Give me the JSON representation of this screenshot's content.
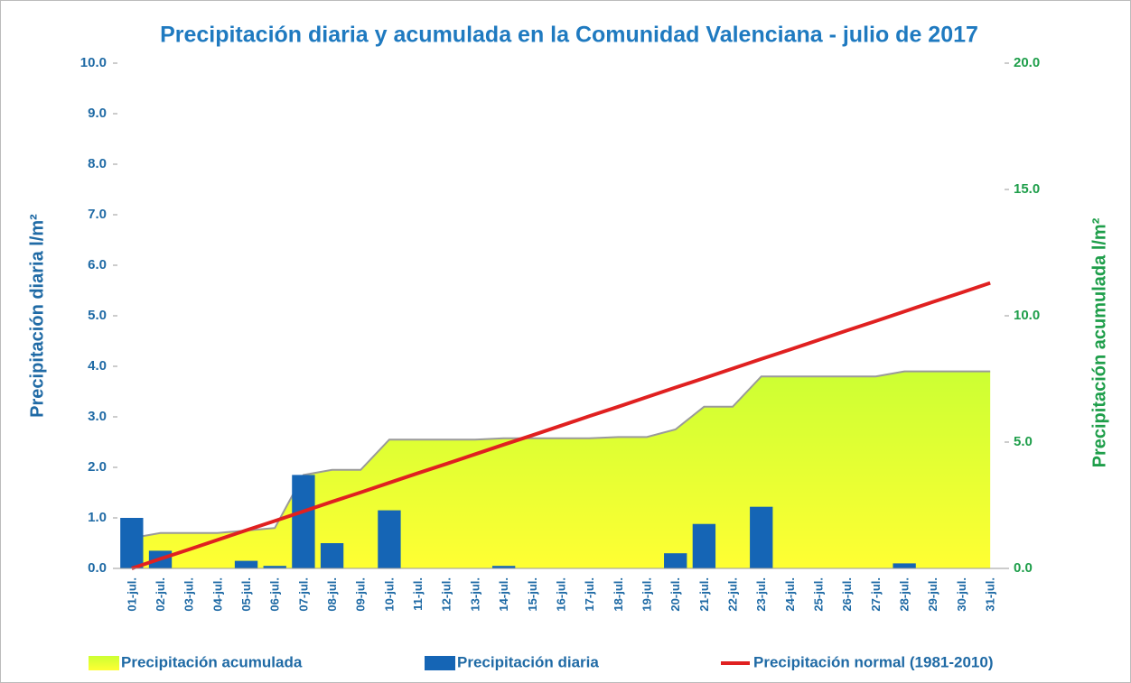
{
  "chart_data": {
    "type": "bar",
    "title": "Precipitación diaria y acumulada en la Comunidad Valenciana - julio de 2017",
    "ylabel": "Precipitación diaria l/m²",
    "y2label": "Precipitación acumulada l/m²",
    "categories": [
      "01-jul.",
      "02-jul.",
      "03-jul.",
      "04-jul.",
      "05-jul.",
      "06-jul.",
      "07-jul.",
      "08-jul.",
      "09-jul.",
      "10-jul.",
      "11-jul.",
      "12-jul.",
      "13-jul.",
      "14-jul.",
      "15-jul.",
      "16-jul.",
      "17-jul.",
      "18-jul.",
      "19-jul.",
      "20-jul.",
      "21-jul.",
      "22-jul.",
      "23-jul.",
      "24-jul.",
      "25-jul.",
      "26-jul.",
      "27-jul.",
      "28-jul.",
      "29-jul.",
      "30-jul.",
      "31-jul."
    ],
    "series": [
      {
        "name": "Precipitación acumulada",
        "type": "area",
        "axis": "y2",
        "color": "#ccff33",
        "values": [
          1.2,
          1.4,
          1.4,
          1.4,
          1.5,
          1.6,
          3.7,
          3.9,
          3.9,
          5.1,
          5.1,
          5.1,
          5.1,
          5.15,
          5.15,
          5.15,
          5.15,
          5.2,
          5.2,
          5.5,
          6.4,
          6.4,
          7.6,
          7.6,
          7.6,
          7.6,
          7.6,
          7.8,
          7.8,
          7.8,
          7.8
        ]
      },
      {
        "name": "Precipitación diaria",
        "type": "bar",
        "color": "#1565b5",
        "values": [
          1.0,
          0.35,
          0,
          0,
          0.15,
          0.05,
          1.85,
          0.5,
          0,
          1.15,
          0,
          0,
          0,
          0.05,
          0,
          0,
          0,
          0,
          0,
          0.3,
          0.88,
          0,
          1.22,
          0,
          0,
          0,
          0,
          0.1,
          0,
          0,
          0
        ]
      },
      {
        "name": "Precipitación normal (1981-2010)",
        "type": "line",
        "axis": "y2",
        "color": "#e02020",
        "values": [
          0,
          0.38,
          0.75,
          1.13,
          1.51,
          1.88,
          2.26,
          2.64,
          3.01,
          3.39,
          3.77,
          4.14,
          4.52,
          4.9,
          5.27,
          5.65,
          6.03,
          6.4,
          6.78,
          7.16,
          7.53,
          7.91,
          8.29,
          8.66,
          9.04,
          9.42,
          9.79,
          10.17,
          10.55,
          10.92,
          11.3
        ]
      }
    ],
    "ylim": [
      0,
      10
    ],
    "yticks": [
      {
        "value": 0,
        "label": "0.0"
      },
      {
        "value": 1,
        "label": "1.0"
      },
      {
        "value": 2,
        "label": "2.0"
      },
      {
        "value": 3,
        "label": "3.0"
      },
      {
        "value": 4,
        "label": "4.0"
      },
      {
        "value": 5,
        "label": "5.0"
      },
      {
        "value": 6,
        "label": "6.0"
      },
      {
        "value": 7,
        "label": "7.0"
      },
      {
        "value": 8,
        "label": "8.0"
      },
      {
        "value": 9,
        "label": "9.0"
      },
      {
        "value": 10,
        "label": "10.0"
      }
    ],
    "y2lim": [
      0,
      20
    ],
    "y2ticks": [
      {
        "value": 0,
        "label": "0.0"
      },
      {
        "value": 5,
        "label": "5.0"
      },
      {
        "value": 10,
        "label": "10.0"
      },
      {
        "value": 15,
        "label": "15.0"
      },
      {
        "value": 20,
        "label": "20.0"
      }
    ],
    "legend": "bottom"
  }
}
